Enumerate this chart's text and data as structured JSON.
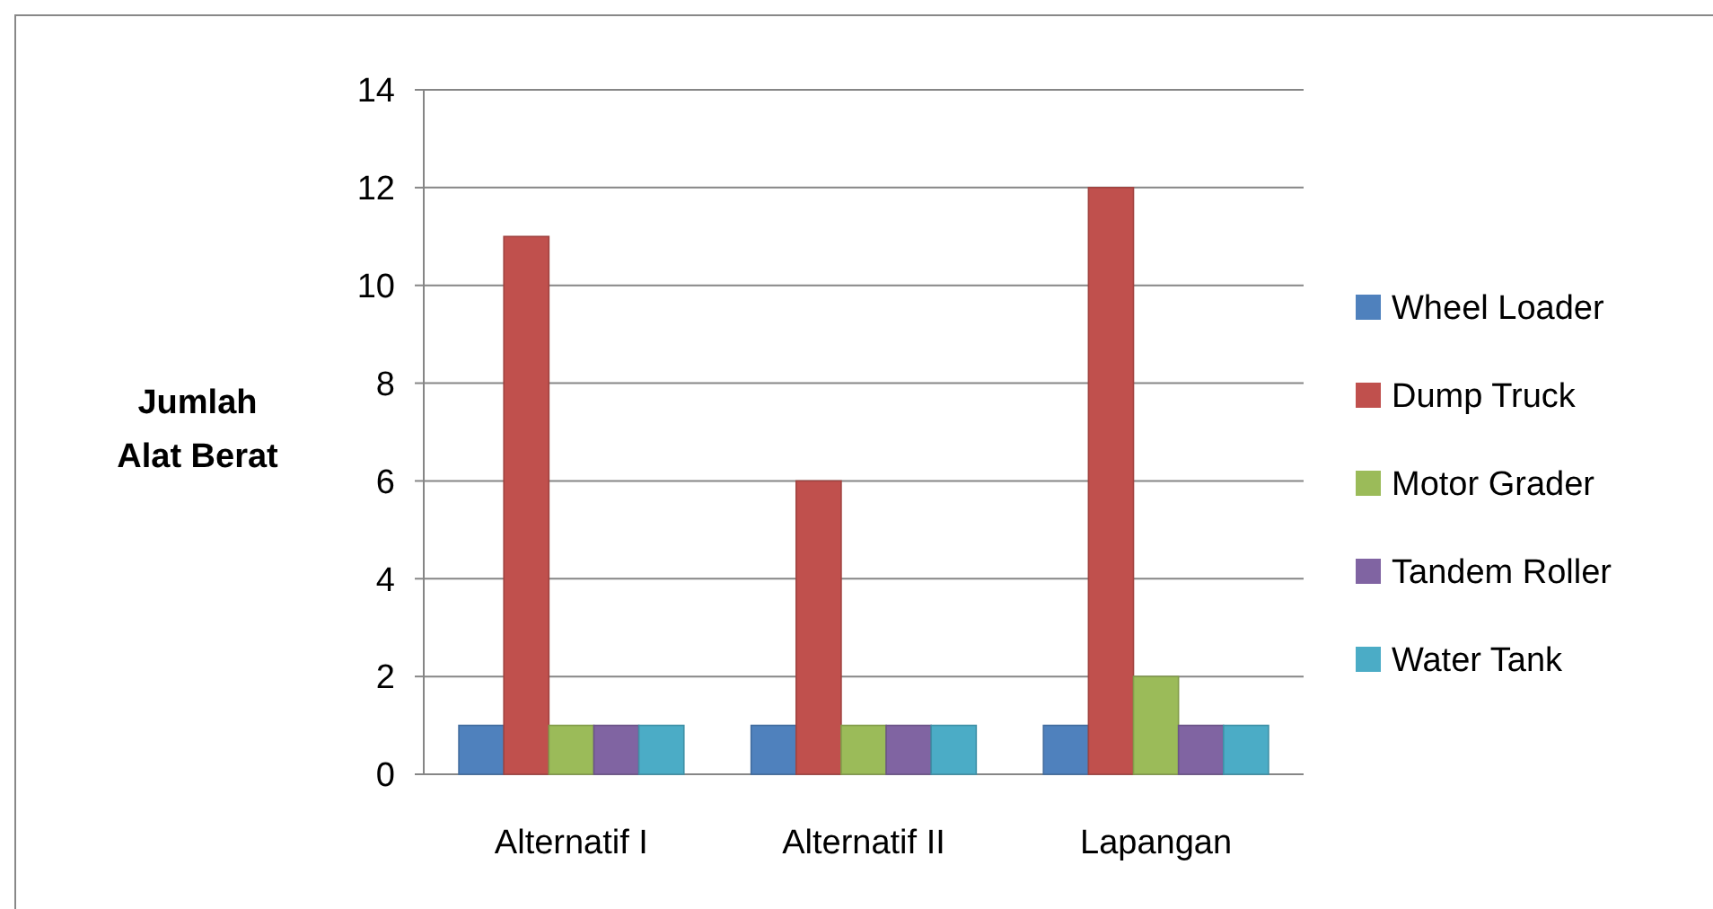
{
  "chart_data": {
    "type": "bar",
    "ylabel": "Jumlah Alat Berat",
    "categories": [
      "Alternatif I",
      "Alternatif II",
      "Lapangan"
    ],
    "series": [
      {
        "name": "Wheel Loader",
        "color": "#4f81bd",
        "values": [
          1,
          1,
          1
        ]
      },
      {
        "name": "Dump Truck",
        "color": "#c0504d",
        "values": [
          11,
          6,
          12
        ]
      },
      {
        "name": "Motor Grader",
        "color": "#9bbb59",
        "values": [
          1,
          1,
          2
        ]
      },
      {
        "name": "Tandem Roller",
        "color": "#8064a2",
        "values": [
          1,
          1,
          1
        ]
      },
      {
        "name": "Water Tank",
        "color": "#4bacc6",
        "values": [
          1,
          1,
          1
        ]
      }
    ],
    "ylim": [
      0,
      14
    ],
    "yticks": [
      0,
      2,
      4,
      6,
      8,
      10,
      12,
      14
    ],
    "grid": "y",
    "legend": "right"
  }
}
